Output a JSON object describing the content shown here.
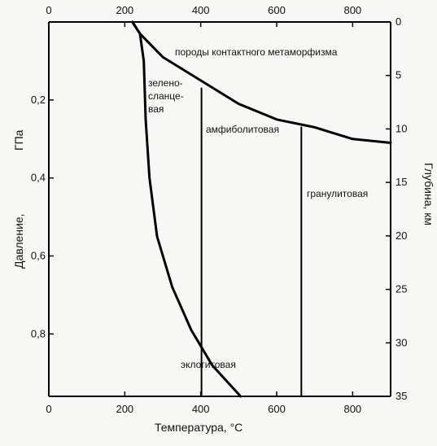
{
  "chart_data": {
    "type": "line",
    "x_axis": {
      "title": "Температура,",
      "title_unit": "°C",
      "ticks_top": [
        "0",
        "200",
        "400",
        "600",
        "800"
      ],
      "ticks_bottom": [
        "0",
        "200",
        "400",
        "600",
        "800"
      ],
      "range": [
        0,
        900
      ]
    },
    "y_axis_left": {
      "title": "Давление,",
      "title_unit": "ГПа",
      "ticks": [
        "0,2",
        "0,4",
        "0,6",
        "0,8"
      ],
      "range": [
        0,
        0.96
      ],
      "inverted": true
    },
    "y_axis_right": {
      "title": "Глубина, км",
      "ticks": [
        "0",
        "5",
        "10",
        "15",
        "20",
        "25",
        "30",
        "35"
      ],
      "range": [
        0,
        35
      ]
    },
    "boundaries": [
      {
        "points": [
          [
            220,
            0
          ],
          [
            240,
            0.03
          ],
          [
            300,
            0.09
          ],
          [
            400,
            0.15
          ],
          [
            500,
            0.21
          ],
          [
            600,
            0.25
          ],
          [
            700,
            0.27
          ],
          [
            800,
            0.3
          ],
          [
            900,
            0.31
          ]
        ]
      },
      {
        "points": [
          [
            220,
            0
          ],
          [
            240,
            0.03
          ],
          [
            250,
            0.1
          ],
          [
            255,
            0.25
          ],
          [
            265,
            0.4
          ],
          [
            285,
            0.55
          ],
          [
            325,
            0.68
          ],
          [
            375,
            0.79
          ],
          [
            430,
            0.88
          ],
          [
            505,
            0.96
          ]
        ]
      },
      {
        "points": [
          [
            402,
            0.17
          ],
          [
            402,
            0.96
          ]
        ]
      },
      {
        "points": [
          [
            665,
            0.27
          ],
          [
            665,
            0.96
          ]
        ]
      }
    ],
    "fields": [
      {
        "label_lines": [
          "породы контактного метаморфизма"
        ]
      },
      {
        "label_lines": [
          "зелено-",
          "сланце-",
          "вая"
        ]
      },
      {
        "label_lines": [
          "амфиболитовая"
        ]
      },
      {
        "label_lines": [
          "гранулитовая"
        ]
      },
      {
        "label_lines": [
          "эклогитовая"
        ]
      }
    ]
  }
}
